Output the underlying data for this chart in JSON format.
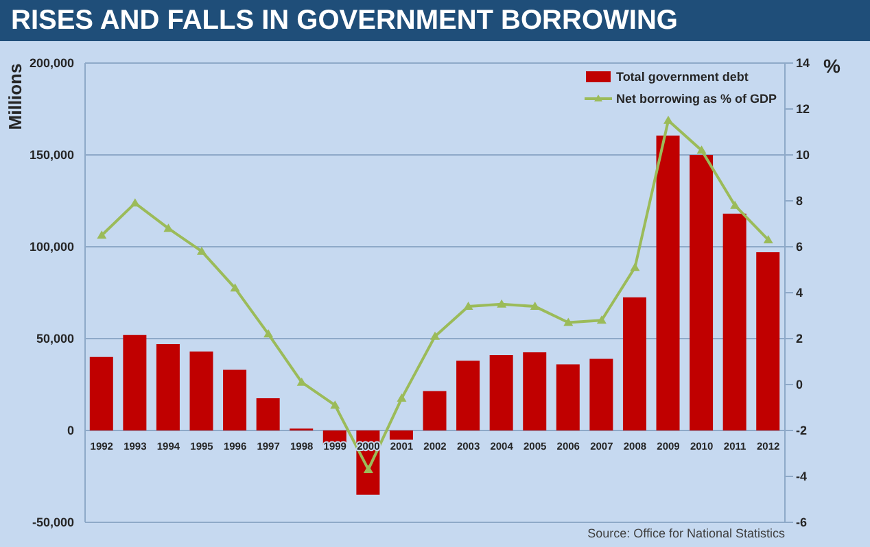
{
  "chart_data": {
    "type": "bar",
    "title": "RISES AND FALLS IN GOVERNMENT BORROWING",
    "ylabel": "Millions",
    "y2label": "%",
    "categories": [
      "1992",
      "1993",
      "1994",
      "1995",
      "1996",
      "1997",
      "1998",
      "1999",
      "2000",
      "2001",
      "2002",
      "2003",
      "2004",
      "2005",
      "2006",
      "2007",
      "2008",
      "2009",
      "2010",
      "2011",
      "2012"
    ],
    "series": [
      {
        "name": "Total government debt",
        "color": "#c00000",
        "values": [
          40000,
          52000,
          47000,
          43000,
          33000,
          17500,
          1000,
          -8000,
          -35000,
          -5000,
          21500,
          38000,
          41000,
          42500,
          36000,
          39000,
          72500,
          160500,
          150000,
          118000,
          97000
        ]
      },
      {
        "name": "Net borrowing as % of GDP",
        "type": "line",
        "axis": "y2",
        "color": "#9bbb59",
        "values": [
          6.5,
          7.9,
          6.8,
          5.8,
          4.2,
          2.2,
          0.1,
          -0.9,
          -3.7,
          -0.6,
          2.1,
          3.4,
          3.5,
          3.4,
          2.7,
          2.8,
          5.1,
          11.5,
          10.2,
          7.8,
          6.3
        ]
      }
    ],
    "ylim": [
      -50000,
      200000
    ],
    "yticks": [
      {
        "value": -50000,
        "label": "-50,000"
      },
      0,
      {
        "value": 50000,
        "label": "50,000"
      },
      {
        "value": 100000,
        "label": "100,000"
      },
      {
        "value": 150000,
        "label": "150,000"
      },
      {
        "value": 200000,
        "label": "200,000"
      }
    ],
    "y2lim": [
      -6,
      14
    ],
    "y2ticks": [
      -6,
      -4,
      -2,
      0,
      2,
      4,
      6,
      8,
      10,
      12,
      14
    ],
    "grid": "y",
    "legend": "top right",
    "marker": "triangle",
    "annotations": [
      "Source: Office for National Statistics"
    ]
  }
}
